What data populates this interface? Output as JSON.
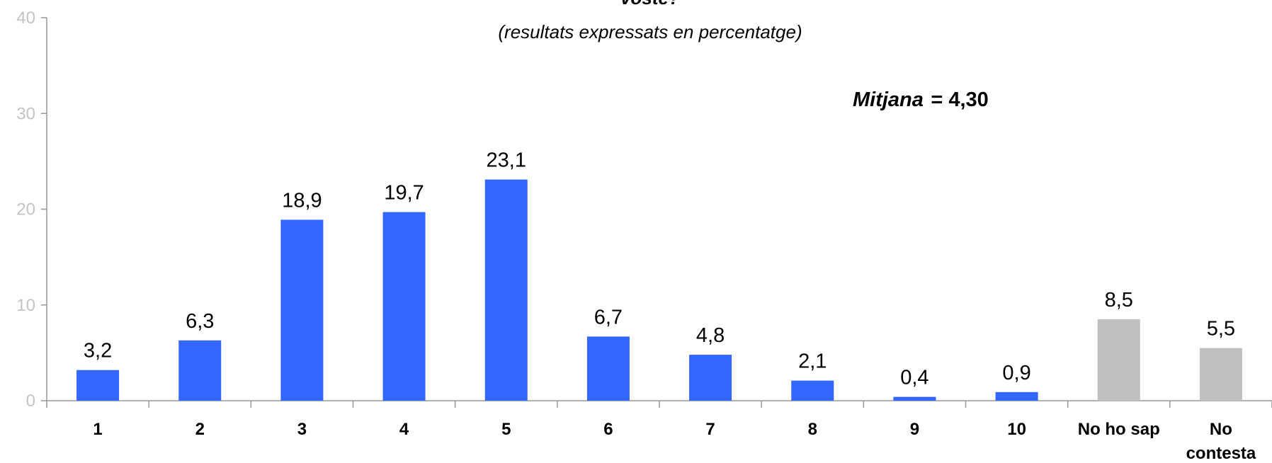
{
  "chart_data": {
    "type": "bar",
    "title": "vostè?",
    "subtitle": "(resultats expressats en percentatge)",
    "annotation": {
      "label": "Mitjana",
      "value": "= 4,30"
    },
    "categories": [
      "1",
      "2",
      "3",
      "4",
      "5",
      "6",
      "7",
      "8",
      "9",
      "10",
      "No ho sap",
      "No contesta"
    ],
    "values": [
      3.2,
      6.3,
      18.9,
      19.7,
      23.1,
      6.7,
      4.8,
      2.1,
      0.4,
      0.9,
      8.5,
      5.5
    ],
    "value_labels": [
      "3,2",
      "6,3",
      "18,9",
      "19,7",
      "23,1",
      "6,7",
      "4,8",
      "2,1",
      "0,4",
      "0,9",
      "8,5",
      "5,5"
    ],
    "bar_colors": [
      "#3366ff",
      "#3366ff",
      "#3366ff",
      "#3366ff",
      "#3366ff",
      "#3366ff",
      "#3366ff",
      "#3366ff",
      "#3366ff",
      "#3366ff",
      "#c0c0c0",
      "#c0c0c0"
    ],
    "ylim": [
      0,
      40
    ],
    "yticks": [
      0,
      10,
      20,
      30,
      40
    ],
    "xlabel": "",
    "ylabel": "",
    "grid": false,
    "axis_color": "#999999"
  }
}
